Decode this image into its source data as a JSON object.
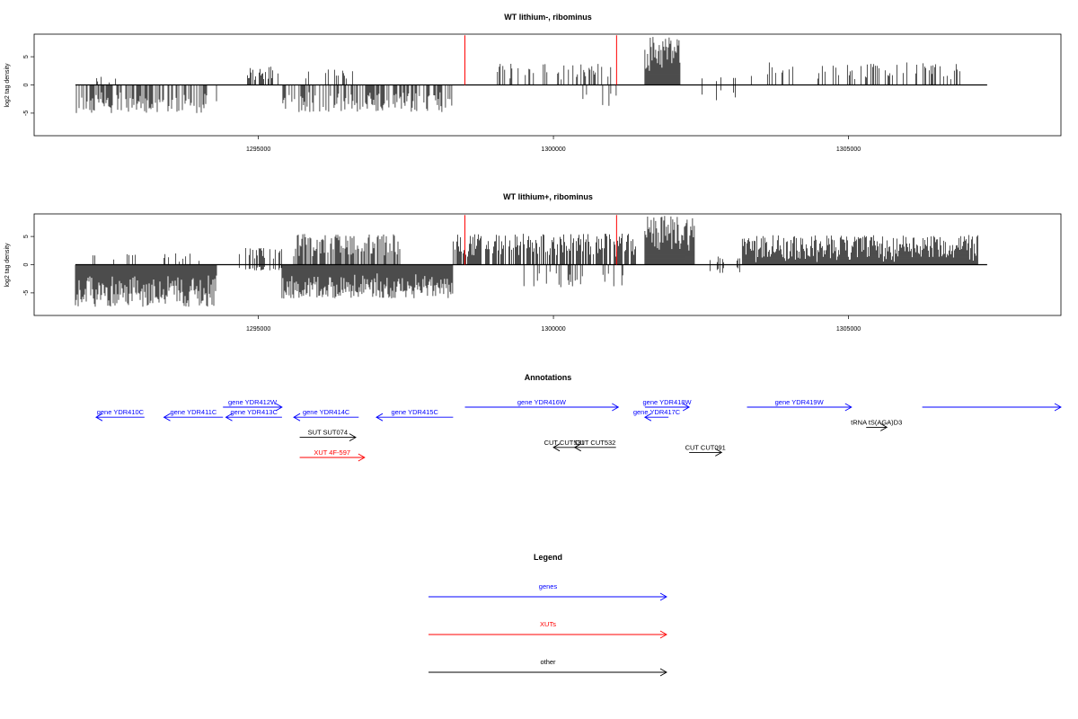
{
  "chart_data": [
    {
      "type": "bar",
      "title": "WT lithium-, ribominus",
      "ylabel": "log2 tag density",
      "xlim": [
        1291200,
        1308600
      ],
      "ylim": [
        -9,
        9
      ],
      "xticks": [
        1295000,
        1300000,
        1305000
      ],
      "yticks": [
        -5,
        0,
        5
      ],
      "grid": false,
      "markers": [
        1298500,
        1301070
      ],
      "marker_color": "#ff0000",
      "segments": [
        {
          "start": 1291900,
          "end": 1294300,
          "min": -5.0,
          "max": 0,
          "density": 0.55
        },
        {
          "start": 1292200,
          "end": 1292600,
          "min": 0,
          "max": 1.5,
          "density": 0.15
        },
        {
          "start": 1294800,
          "end": 1295300,
          "min": 0,
          "max": 3.3,
          "density": 0.45
        },
        {
          "start": 1295300,
          "end": 1296700,
          "min": 0,
          "max": 2.8,
          "density": 0.12
        },
        {
          "start": 1295400,
          "end": 1298300,
          "min": -4.8,
          "max": 0,
          "density": 0.6
        },
        {
          "start": 1298900,
          "end": 1301000,
          "min": 0,
          "max": 3.8,
          "density": 0.3
        },
        {
          "start": 1300500,
          "end": 1301100,
          "min": -3.8,
          "max": 0,
          "density": 0.15
        },
        {
          "start": 1301550,
          "end": 1302150,
          "min": 0,
          "max": 8.8,
          "density": 1.0
        },
        {
          "start": 1301550,
          "end": 1302150,
          "min": 0,
          "max": 2.0,
          "density": 1.0
        },
        {
          "start": 1302200,
          "end": 1303100,
          "min": -2.8,
          "max": 1.5,
          "density": 0.1
        },
        {
          "start": 1303200,
          "end": 1306900,
          "min": 0,
          "max": 4.0,
          "density": 0.25
        }
      ]
    },
    {
      "type": "bar",
      "title": "WT lithium+, ribominus",
      "ylabel": "log2 tag density",
      "xlim": [
        1291200,
        1308600
      ],
      "ylim": [
        -9,
        9
      ],
      "xticks": [
        1295000,
        1300000,
        1305000
      ],
      "yticks": [
        -5,
        0,
        5
      ],
      "grid": false,
      "markers": [
        1298500,
        1301070
      ],
      "marker_color": "#ff0000",
      "segments": [
        {
          "start": 1291900,
          "end": 1294300,
          "min": -7.5,
          "max": 0,
          "density": 1.0
        },
        {
          "start": 1292200,
          "end": 1294000,
          "min": 0,
          "max": 2.0,
          "density": 0.1
        },
        {
          "start": 1294600,
          "end": 1295400,
          "min": -1.0,
          "max": 3.0,
          "density": 0.4
        },
        {
          "start": 1295400,
          "end": 1298300,
          "min": -6.0,
          "max": 0,
          "density": 1.0
        },
        {
          "start": 1295600,
          "end": 1297400,
          "min": 0,
          "max": 5.5,
          "density": 0.7
        },
        {
          "start": 1298300,
          "end": 1301400,
          "min": 0,
          "max": 5.5,
          "density": 0.7
        },
        {
          "start": 1299500,
          "end": 1301200,
          "min": -4.0,
          "max": 0,
          "density": 0.25
        },
        {
          "start": 1301550,
          "end": 1302400,
          "min": 0,
          "max": 8.8,
          "density": 1.0
        },
        {
          "start": 1301550,
          "end": 1302400,
          "min": 0,
          "max": 2.5,
          "density": 1.0
        },
        {
          "start": 1302500,
          "end": 1303200,
          "min": -1.5,
          "max": 1.5,
          "density": 0.15
        },
        {
          "start": 1303200,
          "end": 1307200,
          "min": 0,
          "max": 5.3,
          "density": 0.85
        },
        {
          "start": 1303200,
          "end": 1307200,
          "min": 0,
          "max": 1.5,
          "density": 1.0
        }
      ]
    }
  ],
  "annotations": {
    "title": "Annotations",
    "items": [
      {
        "label": "gene YDR410C",
        "start": 1292250,
        "end": 1293070,
        "strand": "-",
        "color": "#0000ff",
        "row": 1
      },
      {
        "label": "gene YDR411C",
        "start": 1293400,
        "end": 1294400,
        "strand": "-",
        "color": "#0000ff",
        "row": 1
      },
      {
        "label": "gene YDR412W",
        "start": 1294400,
        "end": 1295400,
        "strand": "+",
        "color": "#0000ff",
        "row": 0
      },
      {
        "label": "gene YDR413C",
        "start": 1294450,
        "end": 1295400,
        "strand": "-",
        "color": "#0000ff",
        "row": 1
      },
      {
        "label": "gene YDR414C",
        "start": 1295600,
        "end": 1296700,
        "strand": "-",
        "color": "#0000ff",
        "row": 1
      },
      {
        "label": "gene YDR415C",
        "start": 1297000,
        "end": 1298300,
        "strand": "-",
        "color": "#0000ff",
        "row": 1
      },
      {
        "label": "gene YDR416W",
        "start": 1298500,
        "end": 1301100,
        "strand": "+",
        "color": "#0000ff",
        "row": 0
      },
      {
        "label": "gene YDR418W",
        "start": 1301550,
        "end": 1302300,
        "strand": "+",
        "color": "#0000ff",
        "row": 0
      },
      {
        "label": "gene YDR417C",
        "start": 1301550,
        "end": 1301950,
        "strand": "-",
        "color": "#0000ff",
        "row": 1
      },
      {
        "label": "gene YDR419W",
        "start": 1303280,
        "end": 1305050,
        "strand": "+",
        "color": "#0000ff",
        "row": 0
      },
      {
        "label": "",
        "start": 1306250,
        "end": 1308600,
        "strand": "+",
        "color": "#0000ff",
        "row": 0
      },
      {
        "label": "tRNA tS(AGA)D3",
        "start": 1305300,
        "end": 1305650,
        "strand": "+",
        "color": "#000000",
        "row": 2
      },
      {
        "label": "SUT SUT074",
        "start": 1295700,
        "end": 1296650,
        "strand": "+",
        "color": "#000000",
        "row": 3
      },
      {
        "label": "XUT 4F-597",
        "start": 1295700,
        "end": 1296800,
        "strand": "+",
        "color": "#ff0000",
        "row": 5
      },
      {
        "label": "CUT CUT531",
        "start": 1300000,
        "end": 1300370,
        "strand": "-",
        "color": "#000000",
        "row": 4
      },
      {
        "label": "CUT CUT532",
        "start": 1300360,
        "end": 1301060,
        "strand": "-",
        "color": "#000000",
        "row": 4
      },
      {
        "label": "CUT CUT091",
        "start": 1302300,
        "end": 1302850,
        "strand": "+",
        "color": "#000000",
        "row": 4.5
      }
    ]
  },
  "legend": {
    "title": "Legend",
    "items": [
      {
        "label": "genes",
        "color": "#0000ff"
      },
      {
        "label": "XUTs",
        "color": "#ff0000"
      },
      {
        "label": "other",
        "color": "#000000"
      }
    ]
  }
}
